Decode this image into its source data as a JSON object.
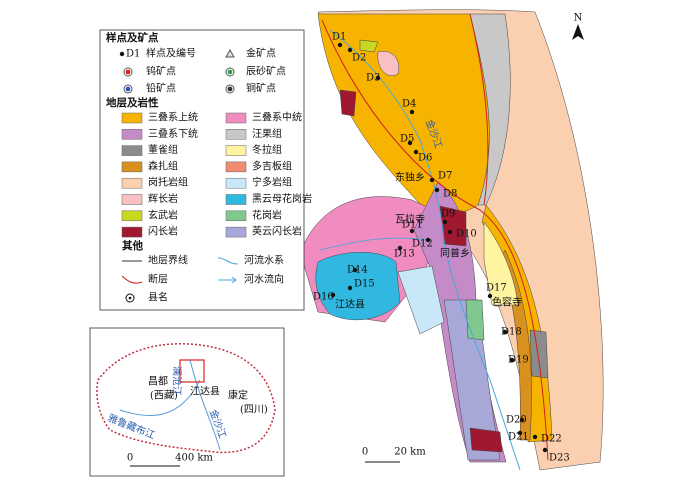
{
  "legend": {
    "samples_title": "样点及矿点",
    "samples": [
      {
        "symbol": "D1",
        "label": "样点及编号"
      },
      {
        "label": "金矿点"
      },
      {
        "label": "钨矿点"
      },
      {
        "label": "辰砂矿点"
      },
      {
        "label": "铅矿点"
      },
      {
        "label": "铜矿点"
      }
    ],
    "strata_title": "地层及岩性",
    "strata": [
      {
        "label": "三叠系上统",
        "color": "#f6b400"
      },
      {
        "label": "三叠系中统",
        "color": "#f08cc0"
      },
      {
        "label": "三叠系下统",
        "color": "#c58bc8"
      },
      {
        "label": "汪果组",
        "color": "#c8c8c8"
      },
      {
        "label": "董雀组",
        "color": "#8c8c8c"
      },
      {
        "label": "冬拉组",
        "color": "#fff5a0"
      },
      {
        "label": "森扎组",
        "color": "#d8901e"
      },
      {
        "label": "多吉板组",
        "color": "#f08a70"
      },
      {
        "label": "岗托岩组",
        "color": "#fbd0b0"
      },
      {
        "label": "宁多岩组",
        "color": "#c8e8f8"
      },
      {
        "label": "辉长岩",
        "color": "#f8c0c0"
      },
      {
        "label": "黑云母花岗岩",
        "color": "#30b8e0"
      },
      {
        "label": "玄武岩",
        "color": "#c8d820"
      },
      {
        "label": "花岗岩",
        "color": "#80c890"
      },
      {
        "label": "闪长岩",
        "color": "#a01830"
      },
      {
        "label": "英云闪长岩",
        "color": "#a8a8d8"
      }
    ],
    "other_title": "其他",
    "other": [
      {
        "label": "地层界线"
      },
      {
        "label": "河流水系"
      },
      {
        "label": "断层"
      },
      {
        "label": "河水流向"
      },
      {
        "label": "县名"
      }
    ]
  },
  "map": {
    "north": "N",
    "samples": [
      "D1",
      "D2",
      "D3",
      "D4",
      "D5",
      "D6",
      "D7",
      "D8",
      "D9",
      "D10",
      "D11",
      "D12",
      "D13",
      "D14",
      "D15",
      "D16",
      "D17",
      "D18",
      "D19",
      "D20",
      "D21",
      "D22",
      "D23"
    ],
    "places": [
      "东独乡",
      "瓦拉寺",
      "同普乡",
      "色容寺",
      "江达县"
    ],
    "river": "金沙江",
    "scale": {
      "start": "0",
      "end": "20 km"
    }
  },
  "inset": {
    "labels": [
      "昌都",
      "(西藏)",
      "江达县",
      "康定",
      "(四川)",
      "雅鲁藏布江",
      "金沙江",
      "澜沧江"
    ],
    "scale": {
      "start": "0",
      "end": "400 km"
    }
  }
}
